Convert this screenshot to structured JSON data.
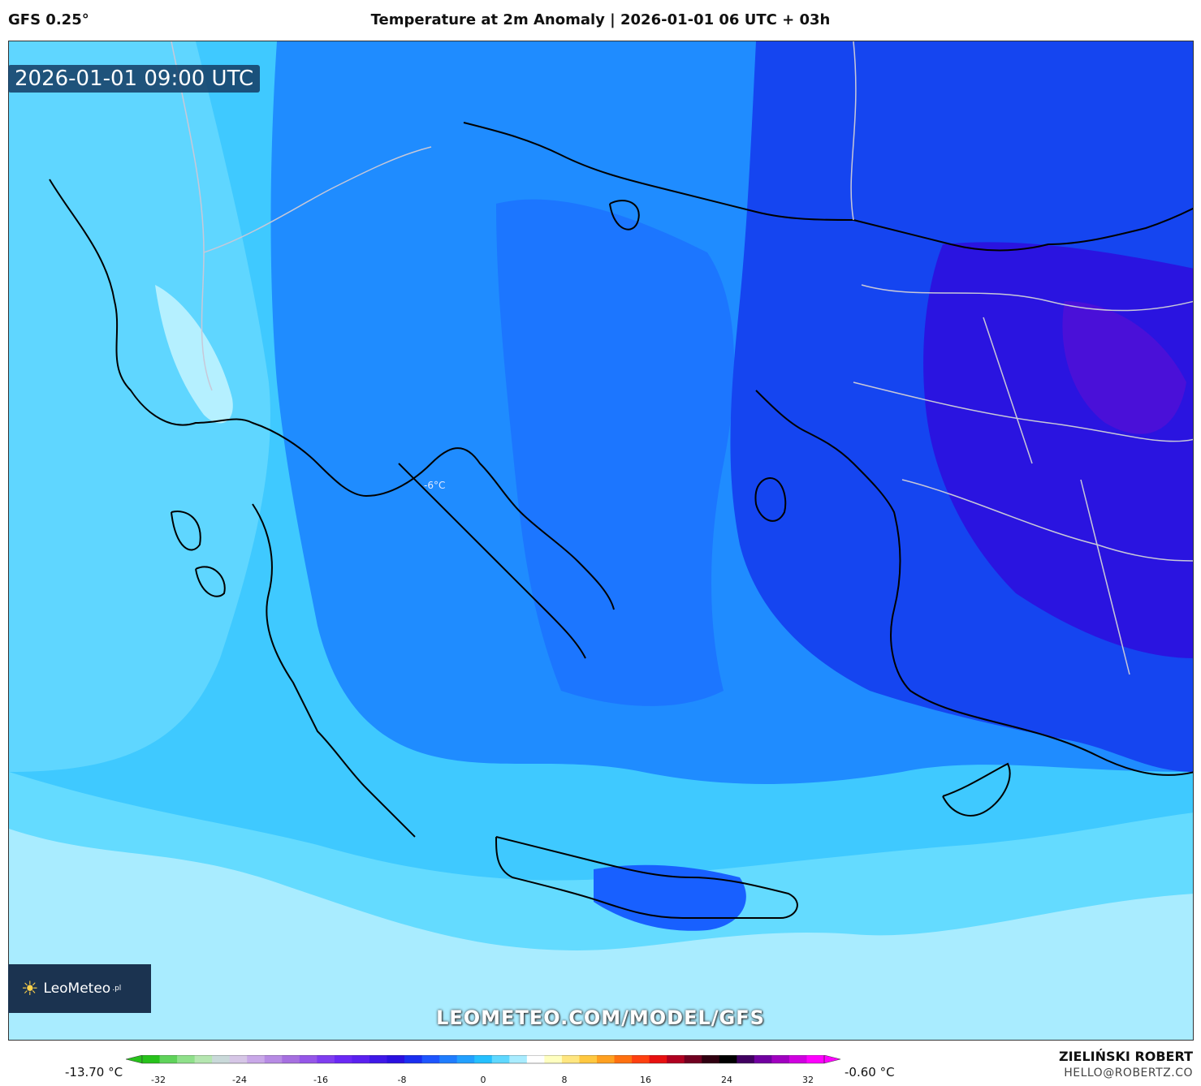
{
  "header": {
    "model": "GFS 0.25°",
    "title": "Temperature at 2m Anomaly | 2026-01-01 06 UTC + 03h"
  },
  "map": {
    "valid_time": "2026-01-01 09:00 UTC",
    "point_label": "-6°C",
    "region": "Greece / Aegean Sea / western Turkey"
  },
  "branding": {
    "logo_text": "LeoMeteo",
    "logo_suffix": ".pl",
    "url": "LEOMETEO.COM/MODEL/GFS",
    "author": "ZIELIŃSKI ROBERT",
    "email": "HELLO@ROBERTZ.CO"
  },
  "colorbar": {
    "min_label": "-13.70 °C",
    "max_label": "-0.60 °C",
    "ticks": [
      "-32",
      "-24",
      "-16",
      "-8",
      "0",
      "8",
      "16",
      "24",
      "32"
    ],
    "colors": [
      "#27c21b",
      "#5fd35a",
      "#8fe08a",
      "#b5e6b0",
      "#c9d9d9",
      "#d6c6e6",
      "#c9a8e8",
      "#b78be4",
      "#a66fe0",
      "#9556e8",
      "#7f3df0",
      "#6a28f5",
      "#5a20f0",
      "#3f18e8",
      "#2a10e0",
      "#1a2ef0",
      "#1e55ff",
      "#1f7dff",
      "#22a0ff",
      "#25c0ff",
      "#5fd8ff",
      "#a9ecff",
      "#ffffff",
      "#ffffc0",
      "#ffe680",
      "#ffc840",
      "#ffa020",
      "#ff7010",
      "#ff4010",
      "#e81010",
      "#b00020",
      "#700020",
      "#300010",
      "#000000",
      "#400060",
      "#7000a0",
      "#a000c0",
      "#d000e0",
      "#ff00ff"
    ]
  }
}
